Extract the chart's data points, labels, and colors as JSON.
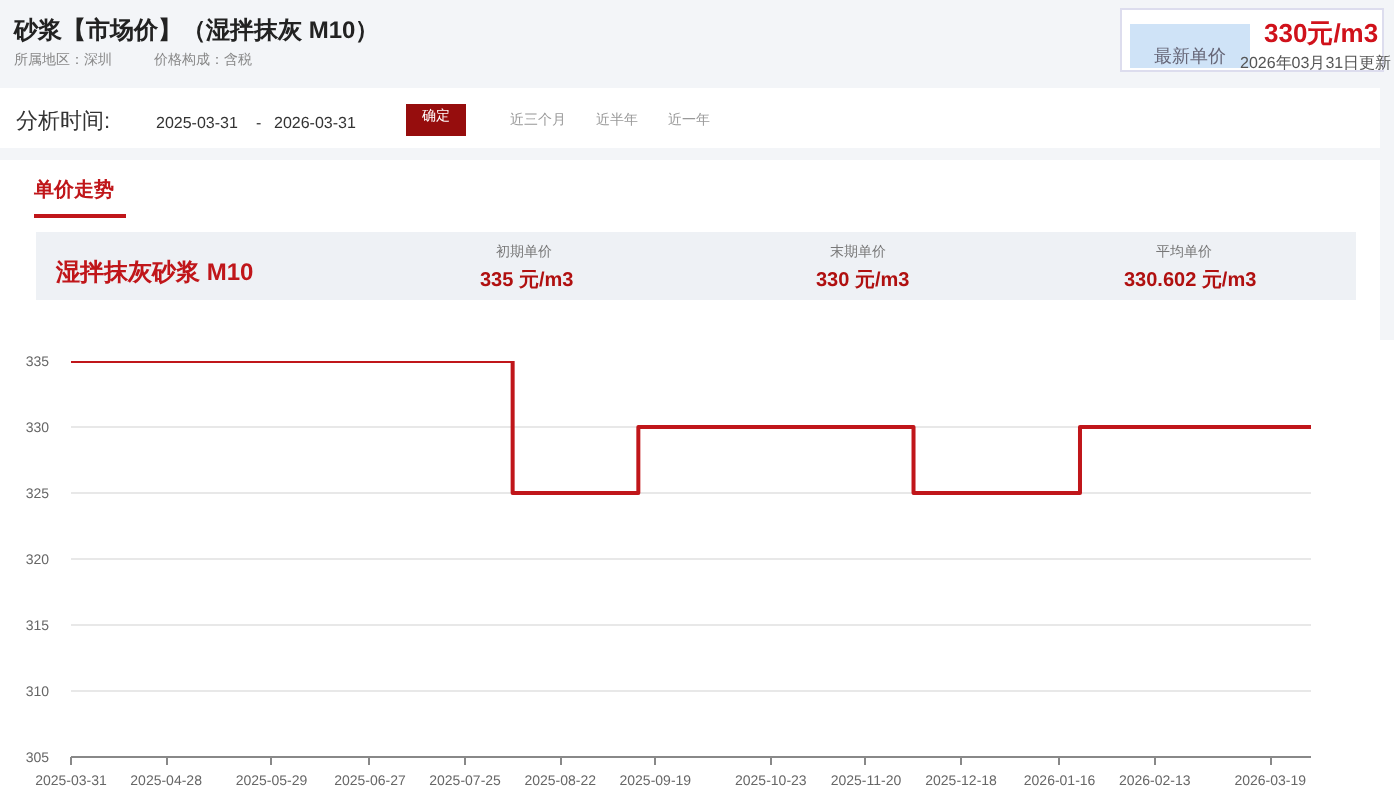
{
  "chart_data": {
    "type": "step",
    "title": "砂浆【市场价】（湿拌抹灰 M10）",
    "subtitle": "所属地区：深圳　　　价格构成：含税",
    "annotations": [
      "最新单价",
      "330元/m3",
      "2026年03月31日更新",
      "分析时间:",
      "2025-03-31",
      "-",
      "2026-03-31",
      "确定",
      "近三个月",
      "近半年",
      "近一年",
      "单价走势",
      "湿拌抹灰砂浆 M10",
      "初期单价",
      "335 元/m3",
      "末期单价",
      "330 元/m3",
      "平均单价",
      "330.602 元/m3"
    ],
    "x": [
      "2025-03-31",
      "2025-08-08",
      "2025-09-14",
      "2025-12-04",
      "2026-01-22",
      "2026-03-31"
    ],
    "series": [
      {
        "color": "#c0161a",
        "values": [
          335,
          325,
          330,
          325,
          330,
          330
        ]
      }
    ],
    "xlim": [
      "2025-03-31",
      "2026-03-31"
    ],
    "xticks": [
      "2025-03-31",
      "2025-04-28",
      "2025-05-29",
      "2025-06-27",
      "2025-07-25",
      "2025-08-22",
      "2025-09-19",
      "2025-10-23",
      "2025-11-20",
      "2025-12-18",
      "2026-01-16",
      "2026-02-13",
      "2026-03-19"
    ],
    "ylim": [
      305,
      335
    ],
    "yticks": [
      305,
      310,
      315,
      320,
      325,
      330,
      335
    ],
    "grid": "y",
    "marker": "none",
    "line_style": "solid"
  }
}
